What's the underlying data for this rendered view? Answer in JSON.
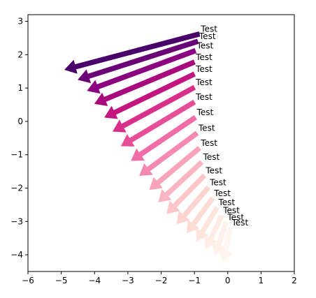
{
  "chart_data": {
    "type": "quiver",
    "title": "",
    "xlabel": "",
    "ylabel": "",
    "xlim": [
      -6,
      2
    ],
    "ylim": [
      -4.5,
      3.2
    ],
    "xticks": [
      -6,
      -5,
      -4,
      -3,
      -2,
      -1,
      0,
      1,
      2
    ],
    "yticks": [
      -4,
      -3,
      -2,
      -1,
      0,
      1,
      2,
      3
    ],
    "grid": false,
    "colormap": "RdPu (reversed, dark to light)",
    "arrows": [
      {
        "x": -0.85,
        "y": 2.62,
        "dx": -4.05,
        "dy": -1.07,
        "color": "#49006a",
        "label": "Test"
      },
      {
        "x": -0.9,
        "y": 2.4,
        "dx": -3.6,
        "dy": -1.15,
        "color": "#6a0177",
        "label": "Test"
      },
      {
        "x": -0.97,
        "y": 2.12,
        "dx": -3.25,
        "dy": -1.2,
        "color": "#8b0180",
        "label": "Test"
      },
      {
        "x": -1.0,
        "y": 1.78,
        "dx": -3.0,
        "dy": -1.25,
        "color": "#a8097d",
        "label": "Test"
      },
      {
        "x": -1.0,
        "y": 1.42,
        "dx": -2.7,
        "dy": -1.3,
        "color": "#c2157f",
        "label": "Test"
      },
      {
        "x": -1.0,
        "y": 1.02,
        "dx": -2.45,
        "dy": -1.32,
        "color": "#d92f8a",
        "label": "Test"
      },
      {
        "x": -1.0,
        "y": 0.58,
        "dx": -2.2,
        "dy": -1.32,
        "color": "#e64e98",
        "label": "Test"
      },
      {
        "x": -0.97,
        "y": 0.12,
        "dx": -1.93,
        "dy": -1.3,
        "color": "#f06ca6",
        "label": "Test"
      },
      {
        "x": -0.92,
        "y": -0.35,
        "dx": -1.73,
        "dy": -1.28,
        "color": "#f689b1",
        "label": "Test"
      },
      {
        "x": -0.85,
        "y": -0.8,
        "dx": -1.5,
        "dy": -1.25,
        "color": "#f8a2bb",
        "label": "Test"
      },
      {
        "x": -0.78,
        "y": -1.22,
        "dx": -1.3,
        "dy": -1.2,
        "color": "#fab5c3",
        "label": "Test"
      },
      {
        "x": -0.7,
        "y": -1.62,
        "dx": -1.13,
        "dy": -1.15,
        "color": "#fcc5c8",
        "label": "Test"
      },
      {
        "x": -0.58,
        "y": -1.98,
        "dx": -0.95,
        "dy": -1.1,
        "color": "#fcd3cf",
        "label": "Test"
      },
      {
        "x": -0.45,
        "y": -2.3,
        "dx": -0.78,
        "dy": -1.05,
        "color": "#fddcd6",
        "label": "Test"
      },
      {
        "x": -0.32,
        "y": -2.58,
        "dx": -0.62,
        "dy": -1.02,
        "color": "#fde4dd",
        "label": "Test"
      },
      {
        "x": -0.18,
        "y": -2.82,
        "dx": -0.47,
        "dy": -1.0,
        "color": "#feebe4",
        "label": "Test"
      },
      {
        "x": -0.05,
        "y": -3.02,
        "dx": -0.33,
        "dy": -1.0,
        "color": "#fef0ea",
        "label": "Test"
      },
      {
        "x": 0.08,
        "y": -3.18,
        "dx": -0.22,
        "dy": -1.05,
        "color": "#fff4ef",
        "label": "Test"
      }
    ]
  }
}
